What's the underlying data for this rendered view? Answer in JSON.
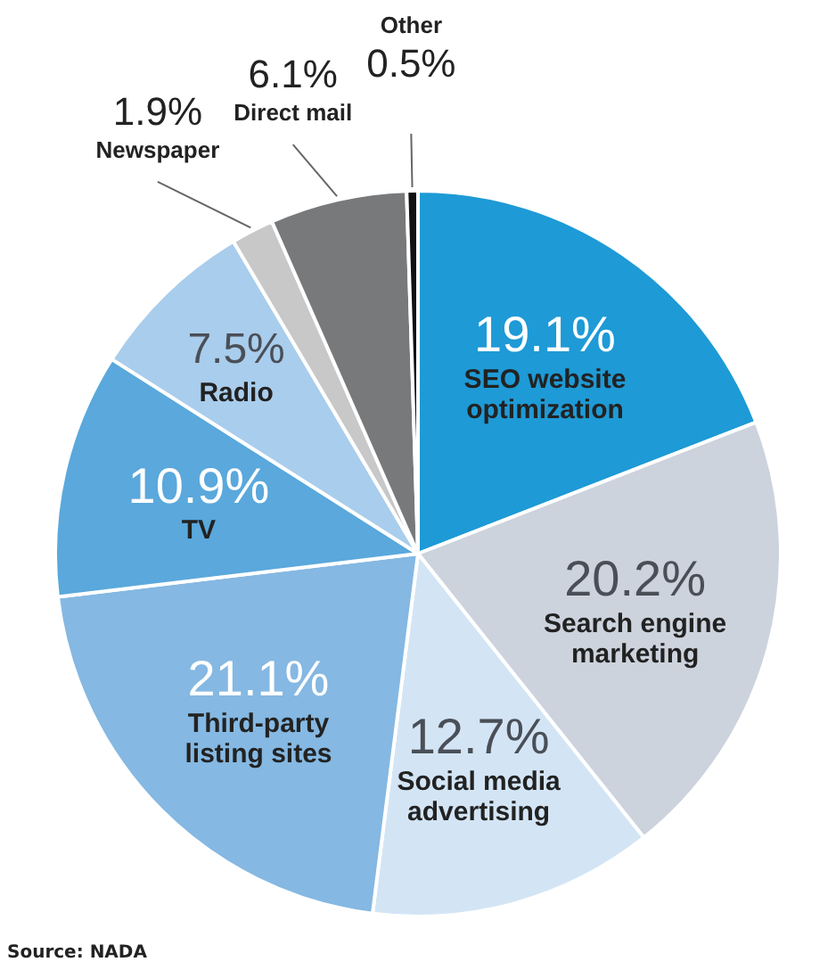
{
  "chart_data": {
    "type": "pie",
    "categories": [
      "SEO website optimization",
      "Search engine marketing",
      "Social media advertising",
      "Third-party listing sites",
      "TV",
      "Radio",
      "Newspaper",
      "Direct mail",
      "Other"
    ],
    "values": [
      19.1,
      20.2,
      12.7,
      21.1,
      10.9,
      7.5,
      1.9,
      6.1,
      0.5
    ],
    "colors": [
      "#1e9ad6",
      "#ccd3dd",
      "#d3e5f5",
      "#85b8e2",
      "#5aa8dc",
      "#a9cdec",
      "#c8c8c8",
      "#78797b",
      "#111111"
    ],
    "value_labels": [
      "19.1%",
      "20.2%",
      "12.7%",
      "21.1%",
      "10.9%",
      "7.5%",
      "1.9%",
      "6.1%",
      "0.5%"
    ],
    "legend": false,
    "annotations": [
      "Source: NADA"
    ]
  }
}
